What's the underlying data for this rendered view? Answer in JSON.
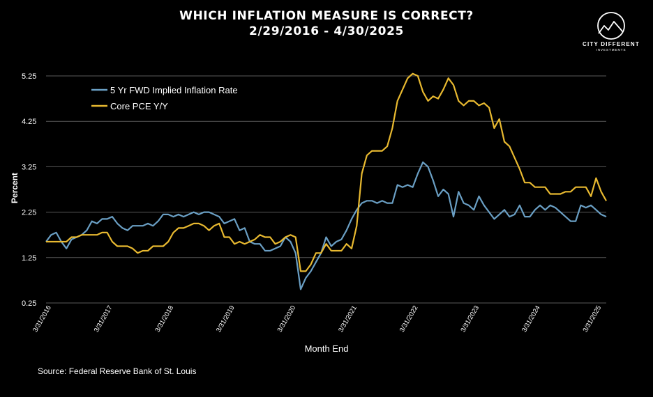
{
  "header": {
    "title_line1": "WHICH INFLATION MEASURE IS CORRECT?",
    "title_line2": "2/29/2016 - 4/30/2025"
  },
  "logo": {
    "name": "CITY DIFFERENT",
    "sub": "INVESTMENTS",
    "icon": "mountain-circle-icon"
  },
  "source": "Source: Federal Reserve Bank of St. Louis",
  "colors": {
    "background": "#000000",
    "grid": "#5a5a5a",
    "series_blue": "#6a9fc4",
    "series_gold": "#e8b930"
  },
  "chart_data": {
    "type": "line",
    "xlabel": "Month End",
    "ylabel": "Percent",
    "ylim": [
      0.25,
      5.25
    ],
    "yticks": [
      "0.25",
      "1.25",
      "2.25",
      "3.25",
      "4.25",
      "5.25"
    ],
    "xticks": [
      {
        "label": "3/31/2016",
        "t": 1
      },
      {
        "label": "3/31/2017",
        "t": 13
      },
      {
        "label": "3/31/2018",
        "t": 25
      },
      {
        "label": "3/31/2019",
        "t": 37
      },
      {
        "label": "3/31/2020",
        "t": 49
      },
      {
        "label": "3/31/2021",
        "t": 61
      },
      {
        "label": "3/31/2022",
        "t": 73
      },
      {
        "label": "3/31/2023",
        "t": 85
      },
      {
        "label": "3/31/2024",
        "t": 97
      },
      {
        "label": "3/31/2025",
        "t": 109
      }
    ],
    "legend": {
      "position": "top-left"
    },
    "grid": true,
    "x_start": "2016-02-29",
    "x_end": "2025-04-30",
    "series": [
      {
        "name": "5 Yr FWD Implied Inflation Rate",
        "color": "#6a9fc4",
        "values": [
          1.6,
          1.75,
          1.8,
          1.6,
          1.45,
          1.65,
          1.7,
          1.75,
          1.85,
          2.05,
          2.0,
          2.1,
          2.1,
          2.15,
          2.0,
          1.9,
          1.85,
          1.95,
          1.95,
          1.95,
          2.0,
          1.95,
          2.05,
          2.2,
          2.2,
          2.15,
          2.2,
          2.15,
          2.2,
          2.25,
          2.2,
          2.25,
          2.25,
          2.2,
          2.15,
          2.0,
          2.05,
          2.1,
          1.85,
          1.9,
          1.6,
          1.55,
          1.55,
          1.4,
          1.4,
          1.45,
          1.5,
          1.7,
          1.6,
          1.35,
          0.55,
          0.8,
          0.95,
          1.15,
          1.35,
          1.7,
          1.5,
          1.6,
          1.65,
          1.85,
          2.1,
          2.3,
          2.45,
          2.5,
          2.5,
          2.45,
          2.5,
          2.45,
          2.45,
          2.85,
          2.8,
          2.85,
          2.8,
          3.1,
          3.35,
          3.25,
          2.95,
          2.6,
          2.75,
          2.65,
          2.15,
          2.7,
          2.45,
          2.4,
          2.3,
          2.6,
          2.4,
          2.25,
          2.1,
          2.2,
          2.3,
          2.15,
          2.2,
          2.4,
          2.15,
          2.15,
          2.3,
          2.4,
          2.3,
          2.4,
          2.35,
          2.25,
          2.15,
          2.05,
          2.05,
          2.4,
          2.35,
          2.4,
          2.3,
          2.2,
          2.15
        ]
      },
      {
        "name": "Core PCE Y/Y",
        "color": "#e8b930",
        "values": [
          1.6,
          1.6,
          1.6,
          1.6,
          1.6,
          1.7,
          1.7,
          1.75,
          1.75,
          1.75,
          1.75,
          1.8,
          1.8,
          1.6,
          1.5,
          1.5,
          1.5,
          1.45,
          1.35,
          1.4,
          1.4,
          1.5,
          1.5,
          1.5,
          1.6,
          1.8,
          1.9,
          1.9,
          1.95,
          2.0,
          2.0,
          1.95,
          1.85,
          1.95,
          2.0,
          1.7,
          1.7,
          1.55,
          1.6,
          1.55,
          1.6,
          1.65,
          1.75,
          1.7,
          1.7,
          1.55,
          1.6,
          1.7,
          1.75,
          1.7,
          0.95,
          0.95,
          1.1,
          1.35,
          1.35,
          1.55,
          1.4,
          1.4,
          1.4,
          1.55,
          1.45,
          1.95,
          3.1,
          3.5,
          3.6,
          3.6,
          3.6,
          3.7,
          4.1,
          4.7,
          4.95,
          5.2,
          5.3,
          5.25,
          4.9,
          4.7,
          4.8,
          4.75,
          4.95,
          5.2,
          5.05,
          4.7,
          4.6,
          4.7,
          4.7,
          4.6,
          4.65,
          4.55,
          4.1,
          4.3,
          3.8,
          3.7,
          3.45,
          3.2,
          2.9,
          2.9,
          2.8,
          2.8,
          2.8,
          2.65,
          2.65,
          2.65,
          2.7,
          2.7,
          2.8,
          2.8,
          2.8,
          2.6,
          3.0,
          2.7,
          2.5
        ]
      }
    ]
  }
}
